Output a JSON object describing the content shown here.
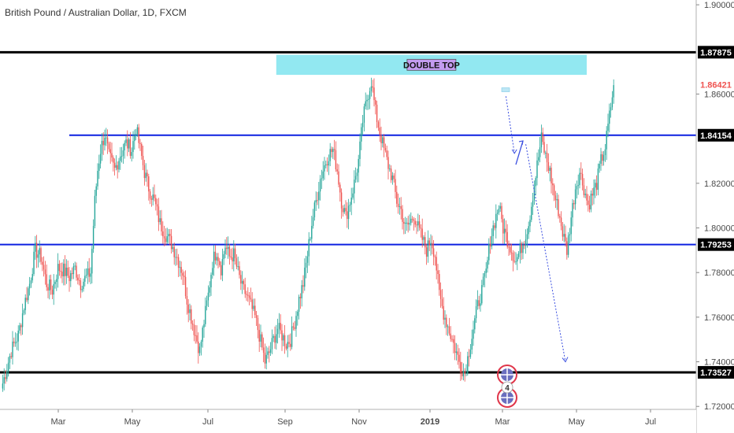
{
  "chart_data": {
    "type": "candlestick",
    "title": "British Pound / Australian Dollar, 1D, FXCM",
    "y_range": [
      1.70808,
      1.90215
    ],
    "y_ticks": [
      "1.90000",
      "1.86000",
      "1.82000",
      "1.80000",
      "1.78000",
      "1.76000",
      "1.74000",
      "1.72000"
    ],
    "x_ticks": [
      "Mar",
      "May",
      "Jul",
      "Sep",
      "Nov",
      "2019",
      "Mar",
      "May",
      "Jul"
    ],
    "price_lines": [
      {
        "label": "1.87875",
        "value": 1.87875,
        "color": "#000000",
        "extent": "full",
        "width": 3
      },
      {
        "label": "1.84154",
        "value": 1.84154,
        "color": "#0d20e0",
        "extent": "partial",
        "width": 2
      },
      {
        "label": "1.79253",
        "value": 1.79253,
        "color": "#0d20e0",
        "extent": "full",
        "width": 2
      },
      {
        "label": "1.73527",
        "value": 1.73527,
        "color": "#000000",
        "extent": "full",
        "width": 3
      }
    ],
    "last_price": {
      "label": "1.86421",
      "value": 1.86421,
      "color": "#ef5350"
    },
    "annotation": {
      "text": "DOUBLE TOP",
      "y_top": 1.8776,
      "y_bottom": 1.8686
    },
    "event_markers": [
      {
        "text": "4"
      }
    ],
    "up_color": "#26a69a",
    "down_color": "#ef5350",
    "line_color": "#0d20e0",
    "anchors": [
      [
        0,
        1.728
      ],
      [
        3,
        1.735
      ],
      [
        7,
        1.745
      ],
      [
        12,
        1.752
      ],
      [
        16,
        1.765
      ],
      [
        20,
        1.775
      ],
      [
        24,
        1.79
      ],
      [
        28,
        1.787
      ],
      [
        32,
        1.775
      ],
      [
        36,
        1.772
      ],
      [
        40,
        1.782
      ],
      [
        44,
        1.781
      ],
      [
        48,
        1.778
      ],
      [
        52,
        1.782
      ],
      [
        56,
        1.775
      ],
      [
        60,
        1.778
      ],
      [
        63,
        1.78
      ],
      [
        66,
        1.812
      ],
      [
        68,
        1.826
      ],
      [
        70,
        1.835
      ],
      [
        73,
        1.842
      ],
      [
        76,
        1.832
      ],
      [
        80,
        1.826
      ],
      [
        84,
        1.833
      ],
      [
        88,
        1.838
      ],
      [
        92,
        1.835
      ],
      [
        95,
        1.845
      ],
      [
        98,
        1.835
      ],
      [
        101,
        1.825
      ],
      [
        104,
        1.818
      ],
      [
        108,
        1.812
      ],
      [
        112,
        1.802
      ],
      [
        116,
        1.797
      ],
      [
        120,
        1.793
      ],
      [
        124,
        1.787
      ],
      [
        128,
        1.78
      ],
      [
        131,
        1.768
      ],
      [
        134,
        1.76
      ],
      [
        137,
        1.752
      ],
      [
        140,
        1.745
      ],
      [
        143,
        1.758
      ],
      [
        146,
        1.77
      ],
      [
        149,
        1.785
      ],
      [
        152,
        1.79
      ],
      [
        155,
        1.782
      ],
      [
        158,
        1.792
      ],
      [
        161,
        1.787
      ],
      [
        164,
        1.788
      ],
      [
        167,
        1.78
      ],
      [
        170,
        1.773
      ],
      [
        173,
        1.77
      ],
      [
        176,
        1.765
      ],
      [
        179,
        1.76
      ],
      [
        182,
        1.752
      ],
      [
        186,
        1.74
      ],
      [
        189,
        1.744
      ],
      [
        192,
        1.75
      ],
      [
        195,
        1.755
      ],
      [
        198,
        1.752
      ],
      [
        201,
        1.748
      ],
      [
        204,
        1.75
      ],
      [
        207,
        1.758
      ],
      [
        210,
        1.768
      ],
      [
        213,
        1.775
      ],
      [
        216,
        1.788
      ],
      [
        219,
        1.802
      ],
      [
        222,
        1.812
      ],
      [
        225,
        1.822
      ],
      [
        228,
        1.828
      ],
      [
        231,
        1.833
      ],
      [
        234,
        1.835
      ],
      [
        237,
        1.826
      ],
      [
        240,
        1.812
      ],
      [
        243,
        1.805
      ],
      [
        246,
        1.812
      ],
      [
        249,
        1.82
      ],
      [
        252,
        1.83
      ],
      [
        255,
        1.848
      ],
      [
        258,
        1.858
      ],
      [
        261,
        1.866
      ],
      [
        264,
        1.852
      ],
      [
        267,
        1.843
      ],
      [
        270,
        1.835
      ],
      [
        273,
        1.828
      ],
      [
        276,
        1.822
      ],
      [
        279,
        1.812
      ],
      [
        282,
        1.808
      ],
      [
        285,
        1.8
      ],
      [
        288,
        1.802
      ],
      [
        291,
        1.806
      ],
      [
        294,
        1.8
      ],
      [
        297,
        1.795
      ],
      [
        300,
        1.79
      ],
      [
        303,
        1.795
      ],
      [
        306,
        1.788
      ],
      [
        309,
        1.77
      ],
      [
        312,
        1.762
      ],
      [
        315,
        1.756
      ],
      [
        318,
        1.75
      ],
      [
        321,
        1.744
      ],
      [
        324,
        1.738
      ],
      [
        327,
        1.735
      ],
      [
        330,
        1.745
      ],
      [
        333,
        1.755
      ],
      [
        336,
        1.765
      ],
      [
        339,
        1.772
      ],
      [
        342,
        1.78
      ],
      [
        345,
        1.795
      ],
      [
        348,
        1.803
      ],
      [
        351,
        1.81
      ],
      [
        354,
        1.8
      ],
      [
        357,
        1.795
      ],
      [
        360,
        1.79
      ],
      [
        363,
        1.785
      ],
      [
        366,
        1.79
      ],
      [
        369,
        1.795
      ],
      [
        372,
        1.802
      ],
      [
        375,
        1.815
      ],
      [
        378,
        1.828
      ],
      [
        381,
        1.84
      ],
      [
        384,
        1.832
      ],
      [
        387,
        1.825
      ],
      [
        390,
        1.815
      ],
      [
        393,
        1.808
      ],
      [
        396,
        1.798
      ],
      [
        399,
        1.79
      ],
      [
        402,
        1.805
      ],
      [
        405,
        1.818
      ],
      [
        408,
        1.825
      ],
      [
        411,
        1.818
      ],
      [
        414,
        1.81
      ],
      [
        417,
        1.815
      ],
      [
        420,
        1.82
      ],
      [
        423,
        1.83
      ],
      [
        426,
        1.836
      ],
      [
        429,
        1.85
      ],
      [
        432,
        1.864
      ]
    ]
  }
}
